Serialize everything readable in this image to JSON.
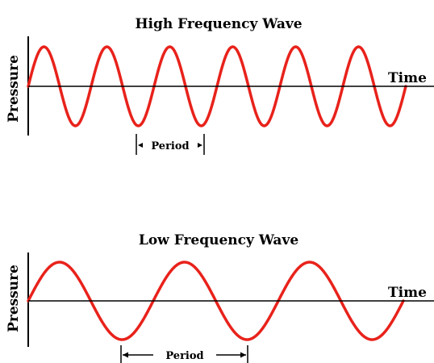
{
  "colors": {
    "wave": "#e8221b",
    "ink": "#000000",
    "background": "#ffffff"
  },
  "panels": [
    {
      "id": "high",
      "title": "High Frequency Wave",
      "y_label": "Pressure",
      "x_label": "Time",
      "period_label": "Period",
      "cycles": 6
    },
    {
      "id": "low",
      "title": "Low Frequency Wave",
      "y_label": "Pressure",
      "x_label": "Time",
      "period_label": "Period",
      "cycles": 3
    }
  ]
}
